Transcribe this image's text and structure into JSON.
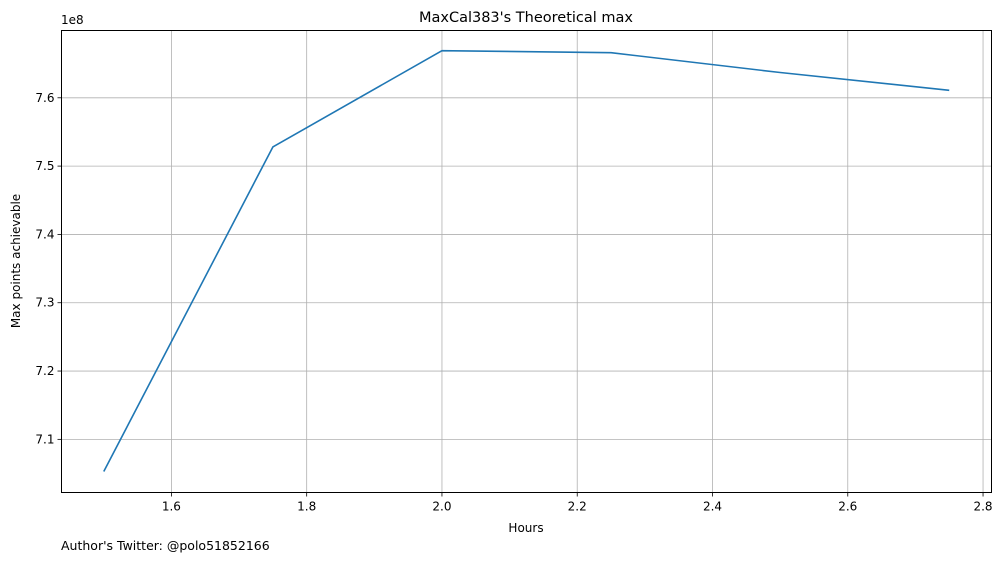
{
  "chart_data": {
    "type": "line",
    "title": "MaxCal383's Theoretical max",
    "xlabel": "Hours",
    "ylabel": "Max points achievable",
    "y_offset_label": "1e8",
    "y_scale_factor": 100000000,
    "xlim": [
      1.4375,
      2.8125
    ],
    "ylim": [
      7.0222,
      7.6985
    ],
    "x_ticks": [
      1.6,
      1.8,
      2.0,
      2.2,
      2.4,
      2.6,
      2.8
    ],
    "x_tick_labels": [
      "1.6",
      "1.8",
      "2.0",
      "2.2",
      "2.4",
      "2.6",
      "2.8"
    ],
    "y_ticks": [
      7.1,
      7.2,
      7.3,
      7.4,
      7.5,
      7.6
    ],
    "y_tick_labels": [
      "7.1",
      "7.2",
      "7.3",
      "7.4",
      "7.5",
      "7.6"
    ],
    "grid": true,
    "series": [
      {
        "color": "#1f77b4",
        "x": [
          1.5,
          1.75,
          2.0,
          2.25,
          2.5,
          2.75
        ],
        "y": [
          7.053,
          7.528,
          7.669,
          7.666,
          7.637,
          7.611
        ]
      }
    ]
  },
  "footnote": "Author's Twitter: @polo51852166"
}
